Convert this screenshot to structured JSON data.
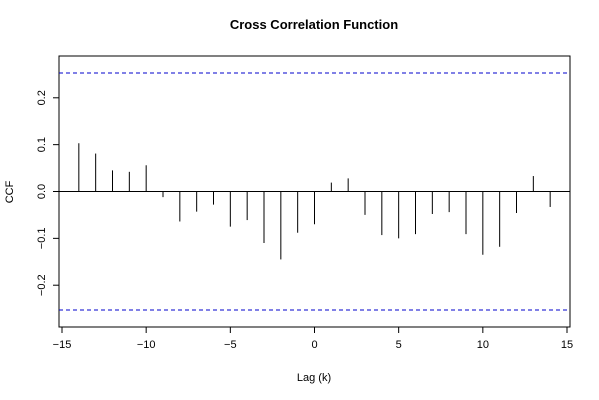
{
  "chart_data": {
    "type": "bar",
    "title": "Cross Correlation Function",
    "xlabel": "Lag (k)",
    "ylabel": "CCF",
    "xlim": [
      -15,
      15
    ],
    "ylim": [
      -0.27,
      0.27
    ],
    "x_ticks": [
      -15,
      -10,
      -5,
      0,
      5,
      10,
      15
    ],
    "y_ticks": [
      -0.2,
      -0.1,
      0.0,
      0.1,
      0.2
    ],
    "x_tick_labels": [
      "−15",
      "−10",
      "−5",
      "0",
      "5",
      "10",
      "15"
    ],
    "y_tick_labels": [
      "−0.2",
      "−0.1",
      "0.0",
      "0.1",
      "0.2"
    ],
    "confidence_bounds": [
      0.253,
      -0.253
    ],
    "grid": false,
    "lags": [
      -14,
      -13,
      -12,
      -11,
      -10,
      -9,
      -8,
      -7,
      -6,
      -5,
      -4,
      -3,
      -2,
      -1,
      0,
      1,
      2,
      3,
      4,
      5,
      6,
      7,
      8,
      9,
      10,
      11,
      12,
      13,
      14
    ],
    "values": [
      0.103,
      0.081,
      0.045,
      0.042,
      0.056,
      -0.012,
      -0.064,
      -0.043,
      -0.028,
      -0.075,
      -0.061,
      -0.11,
      -0.145,
      -0.088,
      -0.07,
      0.019,
      0.028,
      -0.05,
      -0.093,
      -0.1,
      -0.091,
      -0.048,
      -0.044,
      -0.091,
      -0.135,
      -0.118,
      -0.046,
      0.033,
      -0.033
    ],
    "colors": {
      "stem": "#000000",
      "bound": "#0000cc",
      "axis": "#000000"
    }
  }
}
